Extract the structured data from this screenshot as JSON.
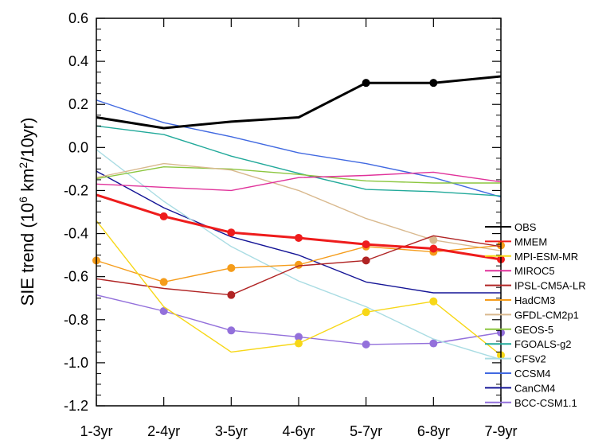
{
  "chart_data": {
    "type": "line",
    "title": "",
    "xlabel": "",
    "ylabel": {
      "prefix": "SIE trend (10",
      "sup1": "6",
      "mid": " km",
      "sup2": "2",
      "suffix": "/10yr)"
    },
    "ylim": [
      -1.2,
      0.6
    ],
    "yticks": [
      "0.6",
      "0.4",
      "0.2",
      "0.0",
      "-0.2",
      "-0.4",
      "-0.6",
      "-0.8",
      "-1.0",
      "-1.2"
    ],
    "categories": [
      "1-3yr",
      "2-4yr",
      "3-5yr",
      "4-6yr",
      "5-7yr",
      "6-8yr",
      "7-9yr"
    ],
    "grid": false,
    "legend_position": "right",
    "series": [
      {
        "name": "OBS",
        "color": "#000000",
        "width": 3,
        "values": [
          0.14,
          0.09,
          0.12,
          0.14,
          0.3,
          0.3,
          0.33
        ],
        "markers": [
          false,
          false,
          false,
          false,
          true,
          true,
          false
        ]
      },
      {
        "name": "MMEM",
        "color": "#ee1c1c",
        "width": 3,
        "values": [
          -0.22,
          -0.32,
          -0.395,
          -0.42,
          -0.45,
          -0.47,
          -0.52
        ],
        "markers": [
          false,
          true,
          true,
          true,
          true,
          true,
          true
        ]
      },
      {
        "name": "MPI-ESM-MR",
        "color": "#f7d717",
        "width": 1.4,
        "values": [
          -0.34,
          -0.74,
          -0.95,
          -0.91,
          -0.765,
          -0.715,
          -0.965
        ],
        "markers": [
          false,
          false,
          false,
          true,
          true,
          true,
          true
        ]
      },
      {
        "name": "MIROC5",
        "color": "#e0329a",
        "width": 1.4,
        "values": [
          -0.17,
          -0.185,
          -0.2,
          -0.14,
          -0.13,
          -0.115,
          -0.16
        ],
        "markers": [
          false,
          false,
          false,
          false,
          false,
          false,
          false
        ]
      },
      {
        "name": "IPSL-CM5A-LR",
        "color": "#b02424",
        "width": 1.4,
        "values": [
          -0.61,
          -0.655,
          -0.685,
          -0.55,
          -0.525,
          -0.41,
          -0.46
        ],
        "markers": [
          false,
          false,
          true,
          false,
          true,
          false,
          false
        ]
      },
      {
        "name": "HadCM3",
        "color": "#f59c1a",
        "width": 1.4,
        "values": [
          -0.525,
          -0.625,
          -0.56,
          -0.545,
          -0.46,
          -0.485,
          -0.455
        ],
        "markers": [
          true,
          true,
          true,
          true,
          true,
          true,
          true
        ]
      },
      {
        "name": "GFDL-CM2p1",
        "color": "#d9b98e",
        "width": 1.4,
        "values": [
          -0.14,
          -0.075,
          -0.105,
          -0.2,
          -0.33,
          -0.43,
          -0.48
        ],
        "markers": [
          false,
          false,
          false,
          false,
          false,
          true,
          false
        ]
      },
      {
        "name": "GEOS-5",
        "color": "#8cc63f",
        "width": 1.4,
        "values": [
          -0.145,
          -0.09,
          -0.1,
          -0.125,
          -0.155,
          -0.165,
          -0.165
        ],
        "markers": [
          false,
          false,
          false,
          false,
          false,
          false,
          false
        ]
      },
      {
        "name": "FGOALS-g2",
        "color": "#21a99a",
        "width": 1.4,
        "values": [
          0.1,
          0.06,
          -0.04,
          -0.12,
          -0.195,
          -0.205,
          -0.225
        ],
        "markers": [
          false,
          false,
          false,
          false,
          false,
          false,
          false
        ]
      },
      {
        "name": "CFSv2",
        "color": "#a9dce3",
        "width": 1.4,
        "values": [
          -0.01,
          -0.25,
          -0.46,
          -0.62,
          -0.74,
          -0.89,
          -0.985
        ],
        "markers": [
          false,
          false,
          false,
          false,
          false,
          false,
          false
        ]
      },
      {
        "name": "CCSM4",
        "color": "#4169e1",
        "width": 1.4,
        "values": [
          0.22,
          0.115,
          0.05,
          -0.025,
          -0.075,
          -0.14,
          -0.23
        ],
        "markers": [
          false,
          false,
          false,
          false,
          false,
          false,
          false
        ]
      },
      {
        "name": "CanCM4",
        "color": "#141496",
        "width": 1.4,
        "values": [
          -0.11,
          -0.28,
          -0.415,
          -0.5,
          -0.625,
          -0.675,
          -0.675
        ],
        "markers": [
          false,
          false,
          false,
          false,
          false,
          false,
          false
        ]
      },
      {
        "name": "BCC-CSM1.1",
        "color": "#9370db",
        "width": 1.4,
        "values": [
          -0.685,
          -0.76,
          -0.85,
          -0.88,
          -0.915,
          -0.91,
          -0.86
        ],
        "markers": [
          false,
          true,
          true,
          true,
          true,
          true,
          true
        ]
      }
    ]
  }
}
